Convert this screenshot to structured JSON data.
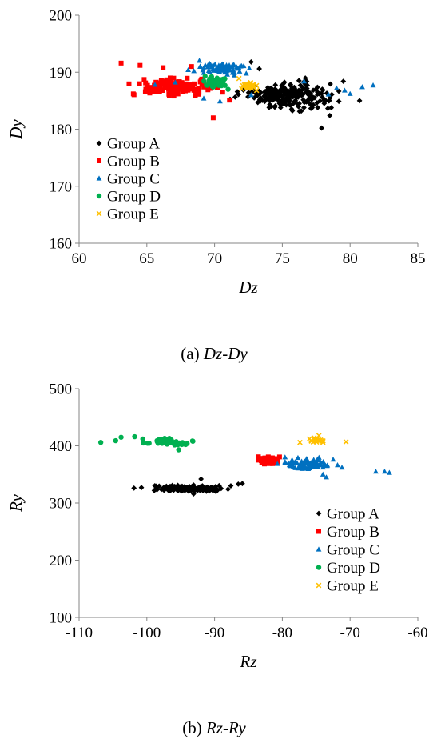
{
  "chart_data": [
    {
      "type": "scatter",
      "caption_prefix": "(a)",
      "caption_name": "Dz-Dy",
      "xlabel": "Dz",
      "ylabel": "Dy",
      "xlim": [
        60,
        85
      ],
      "ylim": [
        160,
        200
      ],
      "xticks": [
        60,
        65,
        70,
        75,
        80,
        85
      ],
      "yticks": [
        160,
        170,
        180,
        190,
        200
      ],
      "grid": false,
      "legend_position": "bottom-left",
      "series": [
        {
          "name": "Group A",
          "color": "#000000",
          "marker": "diamond",
          "cx": 75.5,
          "cy": 186.0,
          "sx": 2.2,
          "sy": 1.6,
          "count": 260,
          "extra": [
            [
              72.7,
              191.8
            ],
            [
              73.3,
              190.6
            ],
            [
              76.4,
              183.2
            ],
            [
              77.9,
              180.2
            ],
            [
              80.7,
              185.0
            ],
            [
              79.5,
              188.4
            ],
            [
              73.0,
              187.6
            ],
            [
              78.5,
              182.4
            ]
          ]
        },
        {
          "name": "Group B",
          "color": "#ff0000",
          "marker": "square",
          "cx": 67.2,
          "cy": 187.4,
          "sx": 1.9,
          "sy": 1.0,
          "count": 130,
          "extra": [
            [
              63.1,
              191.6
            ],
            [
              64.5,
              191.2
            ],
            [
              66.2,
              190.8
            ],
            [
              68.3,
              191.0
            ],
            [
              69.9,
              182.0
            ],
            [
              71.1,
              185.1
            ],
            [
              64.0,
              186.2
            ],
            [
              70.6,
              186.5
            ]
          ]
        },
        {
          "name": "Group C",
          "color": "#0070c0",
          "marker": "triangle",
          "cx": 70.6,
          "cy": 190.6,
          "sx": 1.5,
          "sy": 0.7,
          "count": 75,
          "extra": [
            [
              65.6,
              187.8
            ],
            [
              67.1,
              188.2
            ],
            [
              69.2,
              185.4
            ],
            [
              70.4,
              184.9
            ],
            [
              72.7,
              186.0
            ],
            [
              79.0,
              187.2
            ],
            [
              80.0,
              186.2
            ],
            [
              80.9,
              187.4
            ],
            [
              81.7,
              187.7
            ],
            [
              79.6,
              186.8
            ],
            [
              78.4,
              186.1
            ],
            [
              76.6,
              188.4
            ]
          ]
        },
        {
          "name": "Group D",
          "color": "#00b050",
          "marker": "circle",
          "cx": 70.2,
          "cy": 188.2,
          "sx": 0.6,
          "sy": 0.6,
          "count": 40,
          "extra": [
            [
              71.0,
              187.0
            ],
            [
              69.3,
              189.3
            ]
          ]
        },
        {
          "name": "Group E",
          "color": "#ffc000",
          "marker": "cross",
          "cx": 72.5,
          "cy": 187.6,
          "sx": 0.35,
          "sy": 0.45,
          "count": 30,
          "extra": [
            [
              71.8,
              188.9
            ],
            [
              73.1,
              186.8
            ]
          ]
        }
      ]
    },
    {
      "type": "scatter",
      "caption_prefix": "(b)",
      "caption_name": "Rz-Ry",
      "xlabel": "Rz",
      "ylabel": "Ry",
      "xlim": [
        -110,
        -60
      ],
      "ylim": [
        100,
        500
      ],
      "xticks": [
        -110,
        -100,
        -90,
        -80,
        -70,
        -60
      ],
      "yticks": [
        100,
        200,
        300,
        400,
        500
      ],
      "grid": false,
      "legend_position": "bottom-right",
      "series": [
        {
          "name": "Group A",
          "color": "#000000",
          "marker": "diamond",
          "cx": -93.8,
          "cy": 325.0,
          "sx": 3.2,
          "sy": 3.5,
          "count": 140,
          "extra": [
            [
              -101.9,
              326.0
            ],
            [
              -100.8,
              327.0
            ],
            [
              -98.5,
              327.5
            ],
            [
              -87.6,
              330.0
            ],
            [
              -86.5,
              333.0
            ],
            [
              -85.9,
              334.0
            ],
            [
              -92.0,
              342.0
            ],
            [
              -93.1,
              316.0
            ]
          ]
        },
        {
          "name": "Group B",
          "color": "#ff0000",
          "marker": "square",
          "cx": -81.8,
          "cy": 374.0,
          "sx": 0.9,
          "sy": 4.0,
          "count": 120,
          "extra": []
        },
        {
          "name": "Group C",
          "color": "#0070c0",
          "marker": "triangle",
          "cx": -76.0,
          "cy": 368.0,
          "sx": 2.3,
          "sy": 6.0,
          "count": 90,
          "extra": [
            [
              -74.0,
              350.0
            ],
            [
              -73.5,
              345.0
            ],
            [
              -72.5,
              376.0
            ],
            [
              -71.2,
              362.0
            ],
            [
              -66.2,
              355.0
            ],
            [
              -64.9,
              355.0
            ],
            [
              -64.2,
              353.0
            ],
            [
              -79.6,
              380.0
            ]
          ]
        },
        {
          "name": "Group D",
          "color": "#00b050",
          "marker": "circle",
          "cx": -97.0,
          "cy": 406.0,
          "sx": 2.0,
          "sy": 4.5,
          "count": 45,
          "extra": [
            [
              -106.8,
              406.0
            ],
            [
              -104.6,
              409.0
            ],
            [
              -103.8,
              415.0
            ],
            [
              -101.8,
              416.0
            ],
            [
              -100.6,
              412.0
            ],
            [
              -93.2,
              408.0
            ],
            [
              -95.3,
              393.0
            ]
          ]
        },
        {
          "name": "Group E",
          "color": "#ffc000",
          "marker": "cross",
          "cx": -75.2,
          "cy": 409.0,
          "sx": 1.2,
          "sy": 3.0,
          "count": 22,
          "extra": [
            [
              -77.4,
              406.0
            ],
            [
              -70.6,
              407.0
            ],
            [
              -74.6,
              418.0
            ]
          ]
        }
      ]
    }
  ]
}
